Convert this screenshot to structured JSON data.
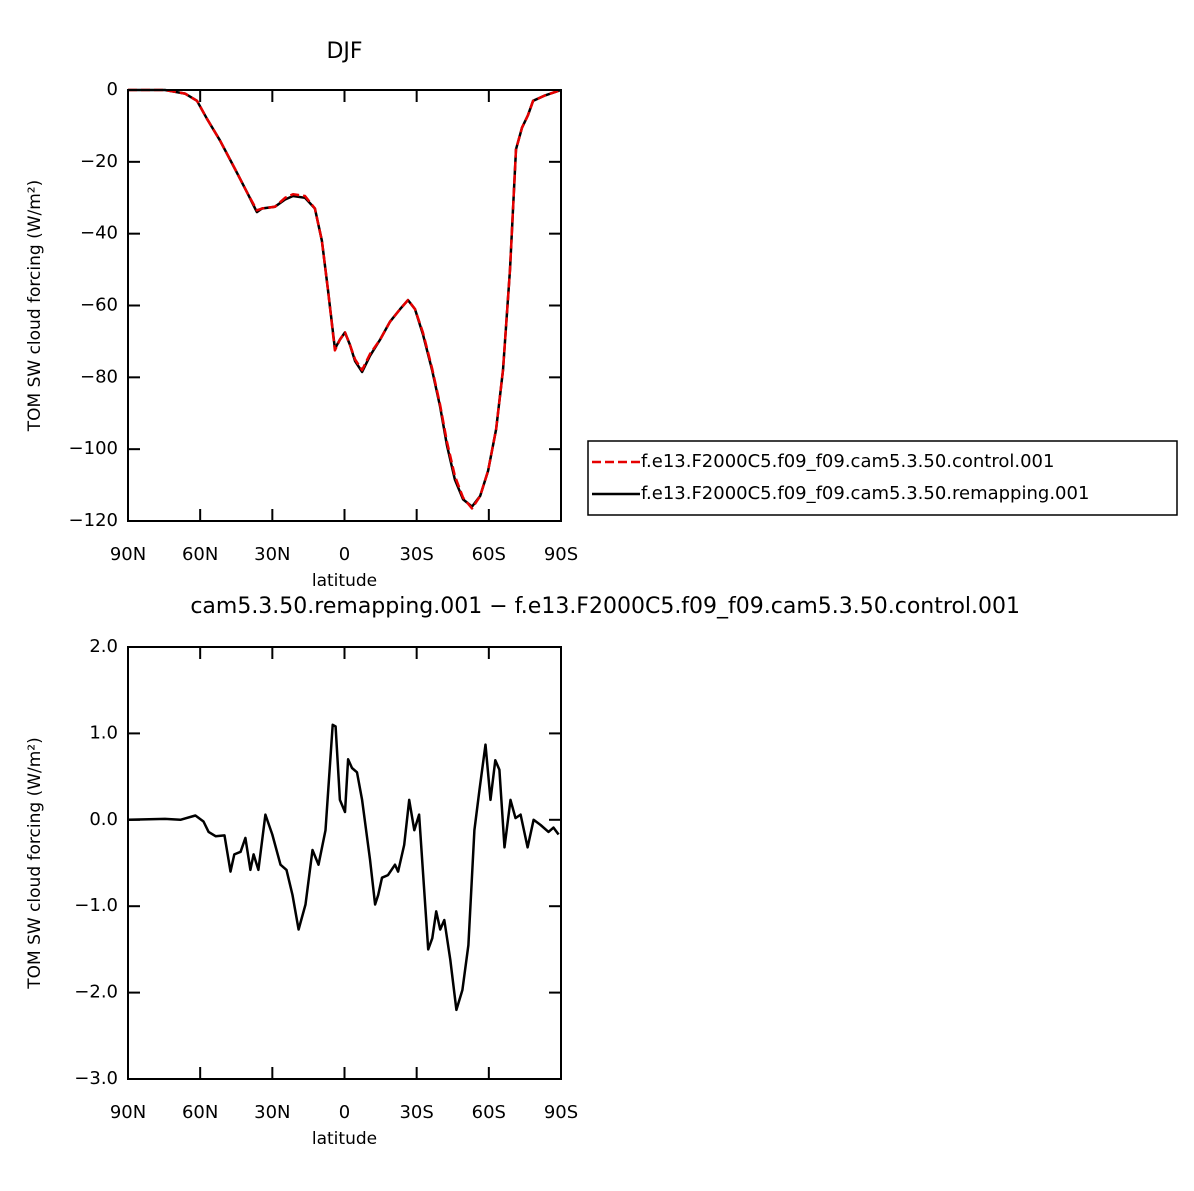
{
  "chart_data": [
    {
      "type": "line",
      "title": "DJF",
      "xlabel": "latitude",
      "ylabel": "TOM SW cloud forcing (W/m²)",
      "x": [
        90,
        74.6,
        66.3,
        61.3,
        57.2,
        51.8,
        45.5,
        40.1,
        36.4,
        34.3,
        28.9,
        24.7,
        21.4,
        16.4,
        12.3,
        9.4,
        6.9,
        4,
        1.9,
        -0.2,
        -2.3,
        -4.4,
        -7.3,
        -10.6,
        -14.8,
        -18.9,
        -23.1,
        -26.4,
        -29.3,
        -32.6,
        -36.4,
        -39.7,
        -42.6,
        -45.9,
        -49.3,
        -53,
        -56.4,
        -59.7,
        -63,
        -65.9,
        -68.8,
        -71.3,
        -73.8,
        -76.3,
        -78.4,
        -83.4,
        -90
      ],
      "series": [
        {
          "name": "f.e13.F2000C5.f09_f09.cam5.3.50.control.001",
          "color": "#e60000",
          "style": "dashed",
          "values": [
            0,
            0,
            -1,
            -3,
            -8,
            -14,
            -22,
            -29,
            -33.5,
            -33,
            -32.5,
            -30,
            -29,
            -29.5,
            -33,
            -42,
            -55.5,
            -72.5,
            -69.5,
            -67.5,
            -71,
            -75,
            -78,
            -73.5,
            -69.5,
            -64.5,
            -61,
            -58.5,
            -61,
            -67.5,
            -77.5,
            -87.5,
            -98,
            -107.5,
            -113.5,
            -116.5,
            -113,
            -106,
            -94.5,
            -78,
            -50,
            -16.5,
            -10.5,
            -7,
            -3,
            -1.5,
            0
          ]
        },
        {
          "name": "f.e13.F2000C5.f09_f09.cam5.3.50.remapping.001",
          "color": "#000000",
          "style": "solid",
          "values": [
            0,
            0,
            -1,
            -3,
            -8,
            -14,
            -22,
            -29,
            -34,
            -33,
            -32.5,
            -30.5,
            -29.5,
            -30,
            -33,
            -42,
            -55.5,
            -72,
            -69.5,
            -67.5,
            -71,
            -75.5,
            -78.5,
            -74,
            -69.5,
            -64.5,
            -61,
            -58.5,
            -61,
            -68,
            -78,
            -88,
            -99,
            -108.5,
            -114,
            -116,
            -113,
            -106,
            -94.5,
            -78,
            -50,
            -16.5,
            -10.5,
            -7,
            -3,
            -1.5,
            0
          ]
        }
      ],
      "xlim": [
        90,
        -90
      ],
      "xticks": [
        {
          "value": 90,
          "label": "90N"
        },
        {
          "value": 60,
          "label": "60N"
        },
        {
          "value": 30,
          "label": "30N"
        },
        0,
        {
          "value": -30,
          "label": "30S"
        },
        {
          "value": -60,
          "label": "60S"
        },
        {
          "value": -90,
          "label": "90S"
        }
      ],
      "ylim": [
        -120,
        0
      ],
      "yticks": [
        0,
        {
          "value": -20,
          "label": "−20"
        },
        {
          "value": -40,
          "label": "−40"
        },
        {
          "value": -60,
          "label": "−60"
        },
        {
          "value": -80,
          "label": "−80"
        },
        {
          "value": -100,
          "label": "−100"
        },
        {
          "value": -120,
          "label": "−120"
        }
      ]
    },
    {
      "type": "line",
      "title": "cam5.3.50.remapping.001 − f.e13.F2000C5.f09_f09.cam5.3.50.control.001",
      "xlabel": "latitude",
      "ylabel": "TOM SW cloud forcing (W/m²)",
      "x": [
        90,
        74.6,
        68.2,
        62,
        58.6,
        56.5,
        53.6,
        49.9,
        47.4,
        45.8,
        43.2,
        41.2,
        39.1,
        37.8,
        35.8,
        32.9,
        30,
        26.6,
        24.1,
        21.6,
        19.1,
        16.2,
        13.3,
        10.8,
        7.9,
        4.9,
        3.7,
        1.9,
        -0.2,
        -1.5,
        -3.1,
        -5.2,
        -7.3,
        -10.6,
        -12.7,
        -14,
        -15.6,
        -18.1,
        -21,
        -22.3,
        -24.8,
        -26.9,
        -29,
        -31,
        -34.8,
        -36.5,
        -38.1,
        -39.8,
        -41.5,
        -44,
        -46.5,
        -49,
        -51.5,
        -54,
        -56.1,
        -58.6,
        -60.7,
        -62.7,
        -64.4,
        -66.5,
        -69,
        -71.1,
        -73.2,
        -76.1,
        -78.6,
        -81.5,
        -84.8,
        -86.9,
        -89
      ],
      "series": [
        {
          "color": "#000000",
          "style": "solid",
          "values": [
            0,
            0.01,
            0,
            0.05,
            -0.02,
            -0.14,
            -0.19,
            -0.18,
            -0.6,
            -0.4,
            -0.37,
            -0.21,
            -0.58,
            -0.4,
            -0.58,
            0.06,
            -0.17,
            -0.52,
            -0.58,
            -0.87,
            -1.27,
            -0.98,
            -0.35,
            -0.52,
            -0.12,
            1.1,
            1.08,
            0.23,
            0.09,
            0.7,
            0.6,
            0.55,
            0.23,
            -0.46,
            -0.98,
            -0.87,
            -0.67,
            -0.64,
            -0.52,
            -0.6,
            -0.29,
            0.23,
            -0.12,
            0.06,
            -1.5,
            -1.37,
            -1.06,
            -1.27,
            -1.16,
            -1.62,
            -2.2,
            -1.97,
            -1.45,
            -0.12,
            0.35,
            0.87,
            0.23,
            0.69,
            0.58,
            -0.32,
            0.23,
            0.02,
            0.06,
            -0.32,
            0,
            -0.06,
            -0.14,
            -0.09,
            -0.17
          ]
        }
      ],
      "xlim": [
        90,
        -90
      ],
      "xticks": [
        {
          "value": 90,
          "label": "90N"
        },
        {
          "value": 60,
          "label": "60N"
        },
        {
          "value": 30,
          "label": "30N"
        },
        0,
        {
          "value": -30,
          "label": "30S"
        },
        {
          "value": -60,
          "label": "60S"
        },
        {
          "value": -90,
          "label": "90S"
        }
      ],
      "ylim": [
        -3,
        2
      ],
      "yticks": [
        {
          "value": 2,
          "label": "2.0"
        },
        {
          "value": 1,
          "label": "1.0"
        },
        {
          "value": 0,
          "label": "0.0"
        },
        {
          "value": -1,
          "label": "−1.0"
        },
        {
          "value": -2,
          "label": "−2.0"
        },
        {
          "value": -3,
          "label": "−3.0"
        }
      ]
    }
  ]
}
